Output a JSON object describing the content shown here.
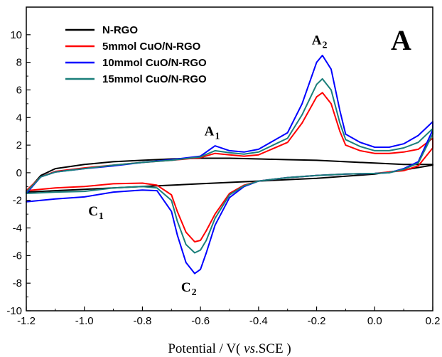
{
  "chart_data": {
    "type": "line",
    "xlabel_parts": {
      "pre": "Potential / V( ",
      "italic": "vs",
      "post": ".SCE )"
    },
    "ylabel": "",
    "xlim": [
      -1.2,
      0.2
    ],
    "ylim": [
      -10,
      12
    ],
    "xticks": [
      -1.2,
      -1.0,
      -0.8,
      -0.6,
      -0.4,
      -0.2,
      0.0,
      0.2
    ],
    "xtick_labels": [
      "-1.2",
      "-1.0",
      "-0.8",
      "-0.6",
      "-0.4",
      "-0.2",
      "0.0",
      "0.2"
    ],
    "yticks": [
      -10,
      -8,
      -6,
      -4,
      -2,
      0,
      2,
      4,
      6,
      8,
      10
    ],
    "ytick_labels": [
      "-10",
      "-8",
      "-6",
      "-4",
      "-2",
      "0",
      "2",
      "4",
      "6",
      "8",
      "10"
    ],
    "grid": false,
    "legend_position": "top-left",
    "panel_label": "A",
    "annotations": [
      {
        "main": "A",
        "sub": "1",
        "x": -0.56,
        "y": 2.7
      },
      {
        "main": "A",
        "sub": "2",
        "x": -0.19,
        "y": 9.3
      },
      {
        "main": "C",
        "sub": "1",
        "x": -0.96,
        "y": -3.1
      },
      {
        "main": "C",
        "sub": "2",
        "x": -0.64,
        "y": -8.6
      }
    ],
    "series": [
      {
        "name": "N-RGO",
        "color": "#000000",
        "x": [
          -1.2,
          -1.15,
          -1.1,
          -1.0,
          -0.9,
          -0.8,
          -0.7,
          -0.6,
          -0.5,
          -0.4,
          -0.3,
          -0.2,
          -0.1,
          0.0,
          0.1,
          0.2,
          0.2,
          0.1,
          0.0,
          -0.1,
          -0.2,
          -0.3,
          -0.4,
          -0.5,
          -0.6,
          -0.7,
          -0.8,
          -0.9,
          -1.0,
          -1.1,
          -1.15,
          -1.2,
          -1.2
        ],
        "y": [
          -1.4,
          -0.2,
          0.3,
          0.6,
          0.8,
          0.9,
          1.0,
          1.05,
          1.05,
          1.0,
          0.95,
          0.9,
          0.8,
          0.7,
          0.6,
          0.6,
          0.55,
          0.2,
          -0.1,
          -0.25,
          -0.4,
          -0.5,
          -0.6,
          -0.7,
          -0.8,
          -0.9,
          -1.0,
          -1.1,
          -1.2,
          -1.3,
          -1.35,
          -1.4,
          -1.4
        ]
      },
      {
        "name": "5mmol CuO/N-RGO",
        "color": "#ff0000",
        "x": [
          -1.2,
          -1.15,
          -1.1,
          -1.0,
          -0.9,
          -0.8,
          -0.7,
          -0.6,
          -0.55,
          -0.5,
          -0.45,
          -0.4,
          -0.3,
          -0.25,
          -0.2,
          -0.18,
          -0.15,
          -0.12,
          -0.1,
          -0.05,
          0.0,
          0.05,
          0.1,
          0.15,
          0.2,
          0.2,
          0.15,
          0.1,
          0.05,
          0.0,
          -0.1,
          -0.2,
          -0.3,
          -0.4,
          -0.45,
          -0.5,
          -0.55,
          -0.58,
          -0.6,
          -0.62,
          -0.65,
          -0.68,
          -0.7,
          -0.75,
          -0.8,
          -0.9,
          -1.0,
          -1.1,
          -1.2
        ],
        "y": [
          -1.3,
          -0.3,
          0.1,
          0.35,
          0.55,
          0.75,
          0.9,
          1.1,
          1.4,
          1.3,
          1.2,
          1.3,
          2.2,
          3.6,
          5.5,
          5.8,
          5.0,
          3.0,
          2.0,
          1.6,
          1.4,
          1.4,
          1.5,
          1.7,
          2.5,
          1.8,
          0.5,
          0.15,
          0.05,
          -0.05,
          -0.1,
          -0.2,
          -0.35,
          -0.6,
          -0.9,
          -1.5,
          -3.0,
          -4.2,
          -4.9,
          -5.0,
          -4.3,
          -2.8,
          -1.6,
          -0.9,
          -0.75,
          -0.8,
          -1.0,
          -1.1,
          -1.3
        ]
      },
      {
        "name": "10mmol CuO/N-RGO",
        "color": "#0000ff",
        "x": [
          -1.2,
          -1.15,
          -1.1,
          -1.0,
          -0.9,
          -0.8,
          -0.7,
          -0.6,
          -0.55,
          -0.5,
          -0.45,
          -0.4,
          -0.3,
          -0.25,
          -0.2,
          -0.18,
          -0.15,
          -0.12,
          -0.1,
          -0.05,
          0.0,
          0.05,
          0.1,
          0.15,
          0.2,
          0.2,
          0.15,
          0.1,
          0.05,
          0.0,
          -0.1,
          -0.2,
          -0.3,
          -0.4,
          -0.45,
          -0.5,
          -0.55,
          -0.58,
          -0.6,
          -0.62,
          -0.65,
          -0.68,
          -0.7,
          -0.75,
          -0.8,
          -0.9,
          -1.0,
          -1.1,
          -1.2
        ],
        "y": [
          -1.5,
          -0.3,
          0.05,
          0.3,
          0.5,
          0.75,
          0.95,
          1.2,
          1.95,
          1.6,
          1.5,
          1.7,
          2.9,
          5.0,
          8.0,
          8.5,
          7.5,
          4.5,
          2.8,
          2.2,
          1.85,
          1.85,
          2.1,
          2.7,
          3.7,
          3.1,
          0.8,
          0.3,
          0.0,
          -0.05,
          -0.1,
          -0.2,
          -0.35,
          -0.6,
          -1.0,
          -1.8,
          -3.8,
          -5.8,
          -7.0,
          -7.3,
          -6.5,
          -4.5,
          -2.8,
          -1.3,
          -1.25,
          -1.4,
          -1.75,
          -1.9,
          -2.1
        ]
      },
      {
        "name": "15mmol CuO/N-RGO",
        "color": "#1a7f7a",
        "x": [
          -1.2,
          -1.15,
          -1.1,
          -1.0,
          -0.9,
          -0.8,
          -0.7,
          -0.6,
          -0.55,
          -0.5,
          -0.45,
          -0.4,
          -0.3,
          -0.25,
          -0.2,
          -0.18,
          -0.15,
          -0.12,
          -0.1,
          -0.05,
          0.0,
          0.05,
          0.1,
          0.15,
          0.2,
          0.2,
          0.15,
          0.1,
          0.05,
          0.0,
          -0.1,
          -0.2,
          -0.3,
          -0.4,
          -0.45,
          -0.5,
          -0.55,
          -0.58,
          -0.6,
          -0.62,
          -0.65,
          -0.68,
          -0.7,
          -0.75,
          -0.8,
          -0.9,
          -1.0,
          -1.1,
          -1.2
        ],
        "y": [
          -1.4,
          -0.3,
          0.05,
          0.3,
          0.55,
          0.75,
          0.9,
          1.15,
          1.6,
          1.45,
          1.35,
          1.5,
          2.5,
          4.2,
          6.4,
          6.8,
          6.0,
          3.6,
          2.4,
          1.9,
          1.6,
          1.6,
          1.8,
          2.2,
          3.2,
          2.8,
          0.7,
          0.25,
          0.0,
          -0.05,
          -0.1,
          -0.2,
          -0.35,
          -0.6,
          -0.95,
          -1.6,
          -3.3,
          -4.9,
          -5.6,
          -5.8,
          -5.2,
          -3.5,
          -2.0,
          -1.1,
          -1.0,
          -1.1,
          -1.35,
          -1.4,
          -1.5
        ]
      }
    ]
  }
}
